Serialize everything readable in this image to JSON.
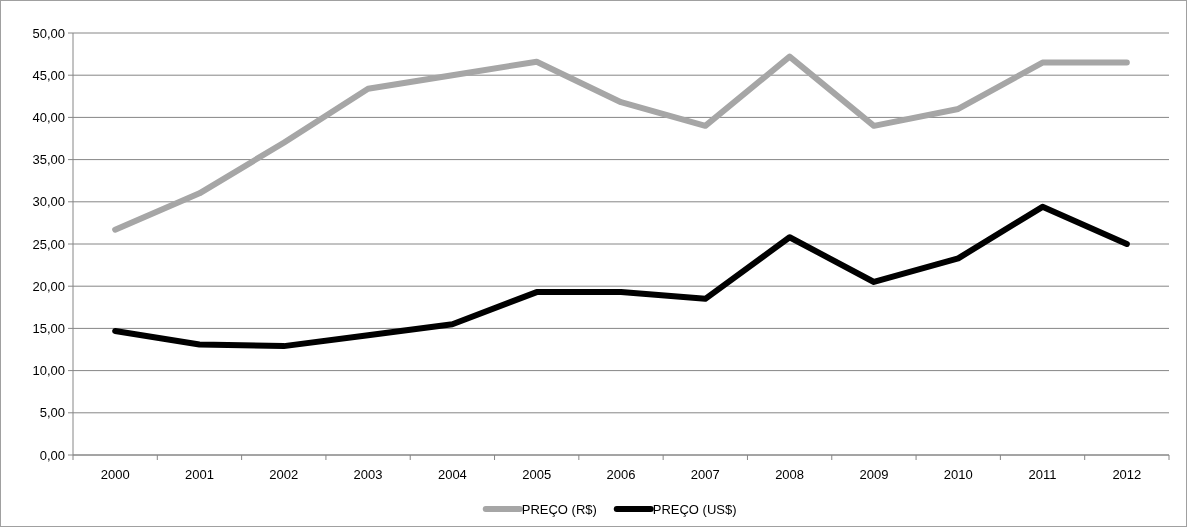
{
  "chart_data": {
    "type": "line",
    "categories": [
      "2000",
      "2001",
      "2002",
      "2003",
      "2004",
      "2005",
      "2006",
      "2007",
      "2008",
      "2009",
      "2010",
      "2011",
      "2012"
    ],
    "series": [
      {
        "name": "PREÇO (R$)",
        "color": "#a6a6a6",
        "values": [
          26.7,
          31.0,
          37.0,
          43.4,
          45.0,
          46.6,
          41.8,
          39.0,
          47.2,
          39.0,
          41.0,
          46.5,
          46.5
        ]
      },
      {
        "name": "PREÇO (US$)",
        "color": "#000000",
        "values": [
          14.7,
          13.1,
          12.9,
          14.2,
          15.5,
          19.3,
          19.3,
          18.5,
          25.8,
          20.5,
          23.3,
          29.4,
          25.0
        ]
      }
    ],
    "ylim": [
      0,
      50
    ],
    "yticks": [
      {
        "value": 0,
        "label": "0,00"
      },
      {
        "value": 5,
        "label": "5,00"
      },
      {
        "value": 10,
        "label": "10,00"
      },
      {
        "value": 15,
        "label": "15,00"
      },
      {
        "value": 20,
        "label": "20,00"
      },
      {
        "value": 25,
        "label": "25,00"
      },
      {
        "value": 30,
        "label": "30,00"
      },
      {
        "value": 35,
        "label": "35,00"
      },
      {
        "value": 40,
        "label": "40,00"
      },
      {
        "value": 45,
        "label": "45,00"
      },
      {
        "value": 50,
        "label": "50,00"
      }
    ],
    "grid": "y",
    "legend": "bottom",
    "marker": "none",
    "line_style": "solid"
  }
}
